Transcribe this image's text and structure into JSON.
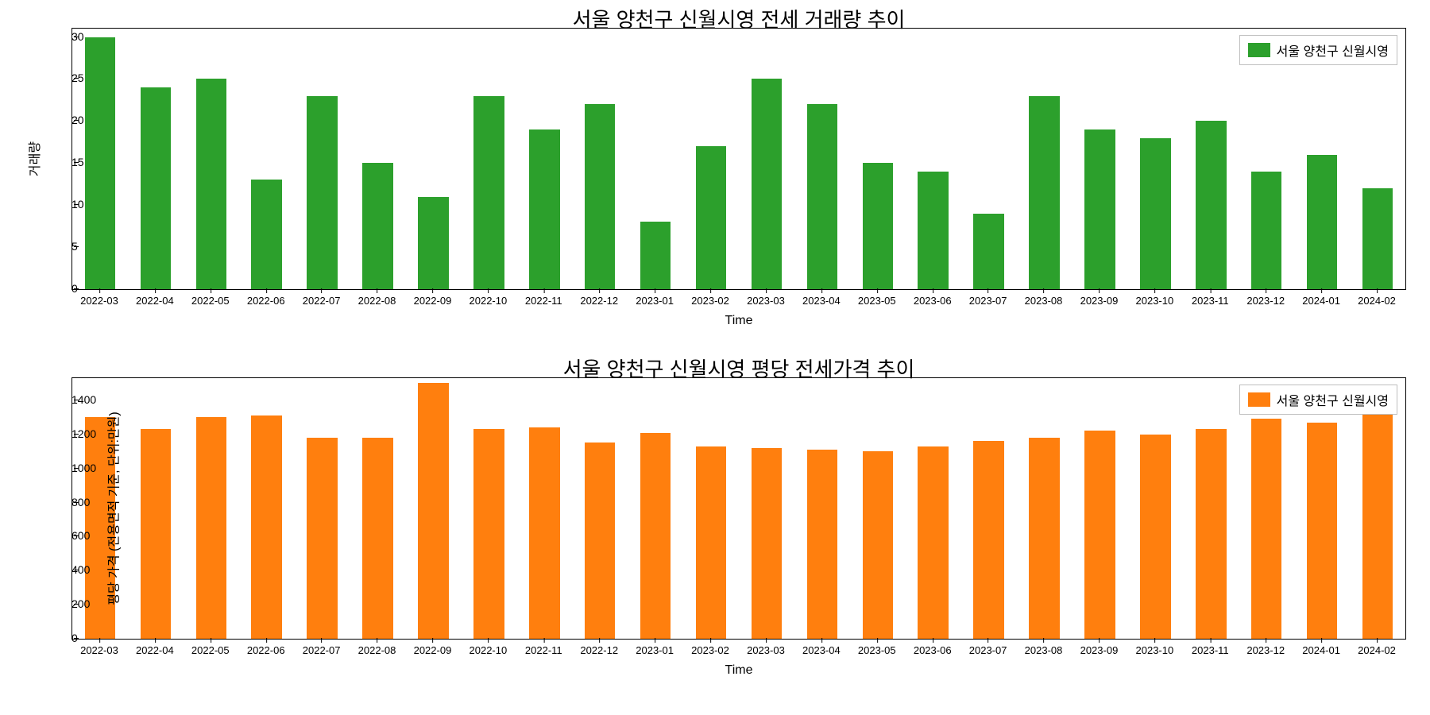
{
  "categories": [
    "2022-03",
    "2022-04",
    "2022-05",
    "2022-06",
    "2022-07",
    "2022-08",
    "2022-09",
    "2022-10",
    "2022-11",
    "2022-12",
    "2023-01",
    "2023-02",
    "2023-03",
    "2023-04",
    "2023-05",
    "2023-06",
    "2023-07",
    "2023-08",
    "2023-09",
    "2023-10",
    "2023-11",
    "2023-12",
    "2024-01",
    "2024-02"
  ],
  "top_chart": {
    "type": "bar",
    "title": "서울 양천구 신월시영 전세 거래량 추이",
    "title_fontsize": 26,
    "xlabel": "Time",
    "ylabel": "거래량",
    "label_fontsize": 16,
    "legend_label": "서울 양천구 신월시영",
    "legend_fontsize": 16,
    "bar_color": "#2ca02c",
    "background_color": "#ffffff",
    "border_color": "#000000",
    "values": [
      30,
      24,
      25,
      13,
      23,
      15,
      11,
      23,
      19,
      22,
      8,
      17,
      25,
      22,
      15,
      14,
      9,
      23,
      19,
      18,
      20,
      14,
      16,
      12
    ],
    "ylim": [
      0,
      31
    ],
    "yticks": [
      0,
      5,
      10,
      15,
      20,
      25,
      30
    ],
    "tick_fontsize": 14,
    "bar_width": 0.55
  },
  "bottom_chart": {
    "type": "bar",
    "title": "서울 양천구 신월시영 평당 전세가격 추이",
    "title_fontsize": 26,
    "xlabel": "Time",
    "ylabel": "평당 가격 (전용면적 기준, 단위:만원)",
    "label_fontsize": 16,
    "legend_label": "서울 양천구 신월시영",
    "legend_fontsize": 16,
    "bar_color": "#ff7f0e",
    "background_color": "#ffffff",
    "border_color": "#000000",
    "values": [
      1300,
      1230,
      1300,
      1310,
      1180,
      1180,
      1500,
      1230,
      1240,
      1150,
      1210,
      1130,
      1120,
      1110,
      1100,
      1130,
      1160,
      1180,
      1220,
      1200,
      1230,
      1290,
      1270,
      1320
    ],
    "ylim": [
      0,
      1530
    ],
    "yticks": [
      0,
      200,
      400,
      600,
      800,
      1000,
      1200,
      1400
    ],
    "tick_fontsize": 14,
    "bar_width": 0.55
  }
}
